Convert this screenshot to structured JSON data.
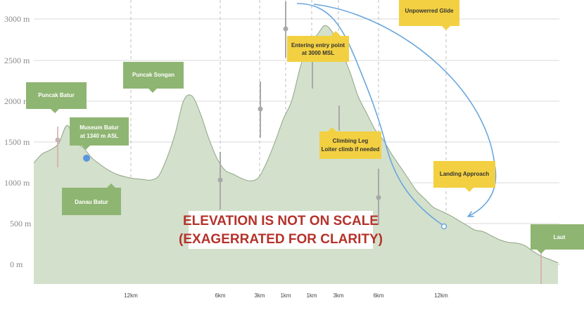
{
  "chart_data": {
    "type": "area",
    "ylabels": [
      "3000 m",
      "2500 m",
      "2000 m",
      "1500 m",
      "1000 m",
      "500 m",
      "0 m"
    ],
    "ylim": [
      -250,
      3200
    ],
    "xlabels": [
      "12km",
      "6km",
      "3km",
      "1km",
      "1km",
      "3km",
      "6km",
      "12km"
    ],
    "grid": true,
    "profile_km": [
      0,
      1,
      2,
      3,
      4,
      5,
      6,
      7,
      8,
      9,
      10,
      11,
      12,
      13,
      14,
      15,
      16,
      17,
      18,
      19,
      20,
      21,
      22,
      23,
      24,
      25,
      26,
      27,
      28,
      29,
      30,
      31,
      32,
      33,
      34,
      35,
      36,
      37,
      38,
      39,
      40,
      41,
      42,
      43,
      44,
      45,
      46,
      47,
      48,
      49,
      50,
      51,
      52,
      53,
      54,
      55,
      56,
      57,
      58,
      59,
      60,
      61,
      62,
      63
    ],
    "elevation_m": [
      1240,
      1350,
      1400,
      1480,
      1700,
      1500,
      1420,
      1300,
      1220,
      1150,
      1100,
      1070,
      1050,
      1040,
      1030,
      1080,
      1300,
      1600,
      2000,
      2060,
      1850,
      1550,
      1300,
      1150,
      1100,
      1050,
      1020,
      1060,
      1250,
      1500,
      1780,
      2000,
      2400,
      2720,
      2800,
      2920,
      2820,
      2600,
      2350,
      2050,
      1850,
      1650,
      1520,
      1350,
      1200,
      1050,
      900,
      800,
      700,
      650,
      600,
      540,
      480,
      420,
      400,
      350,
      300,
      270,
      260,
      230,
      160,
      100,
      60,
      20
    ],
    "colors": {
      "fill": "#d3e0cc",
      "line": "#8fa585",
      "green_callout": "#8fb572",
      "yellow_callout": "#f2d041",
      "flight_path": "#6aa7dd",
      "headline": "#b5322b"
    }
  },
  "callouts": {
    "puncak_batur": "Puncak Batur",
    "museum_line1": "Museum Batur",
    "museum_line2": "at 1340 m ASL",
    "danau_batur": "Danau Batur",
    "puncak_songan": "Puncak Songan",
    "laut": "Laut",
    "entry_line1": "Entering entry point",
    "entry_line2": "at 3000 MSL",
    "unpowered_glide": "Unpowerred Glide",
    "climbing_line1": "Climbing Leg",
    "climbing_line2": "Loiter climb if needed",
    "landing_approach": "Landing Approach"
  },
  "headline": {
    "line1": "ELEVATION IS NOT ON SCALE",
    "line2": "(EXAGERRATED FOR CLARITY)"
  }
}
